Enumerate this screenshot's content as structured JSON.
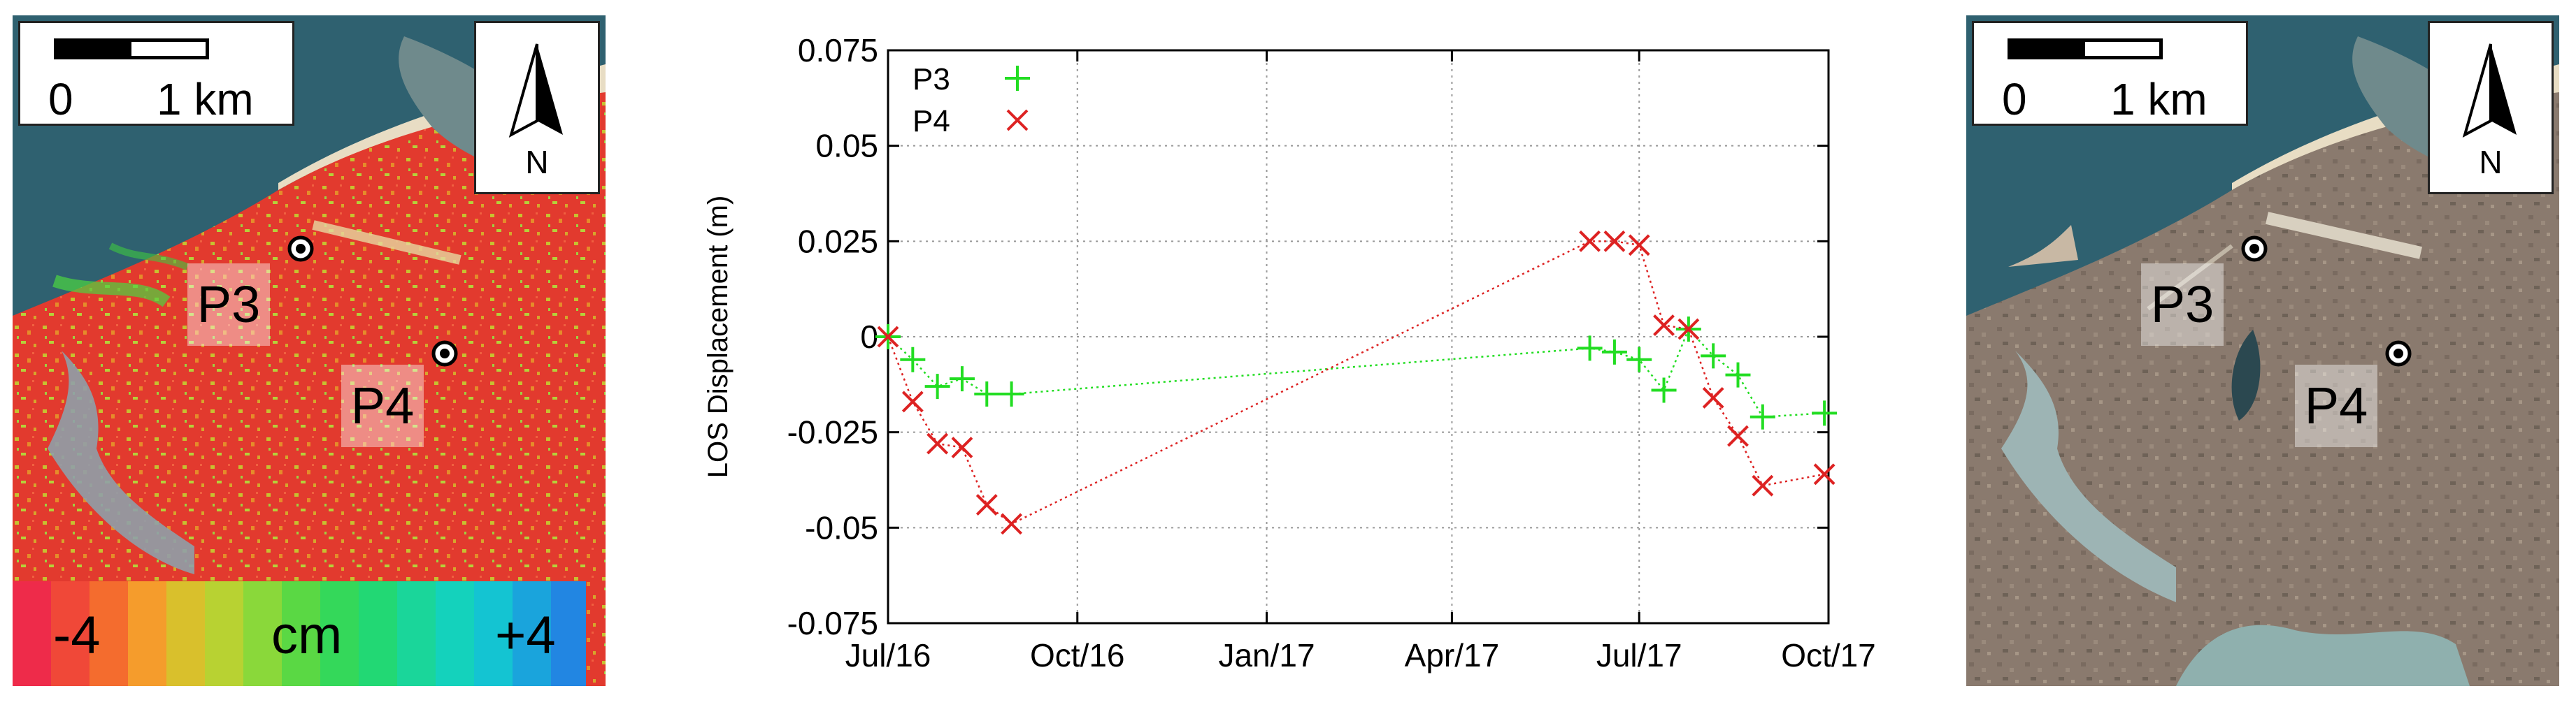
{
  "left_map": {
    "scale_zero": "0",
    "scale_unit": "1 km",
    "north": "N",
    "points": [
      "P3",
      "P4"
    ],
    "colorbar": {
      "min": "-4",
      "unit": "cm",
      "max": "+4"
    }
  },
  "right_map": {
    "scale_zero": "0",
    "scale_unit": "1 km",
    "north": "N",
    "points": [
      "P3",
      "P4"
    ]
  },
  "chart_data": {
    "type": "scatter",
    "ylabel": "LOS Displacement (m)",
    "xlabel": "",
    "ylim": [
      -0.075,
      0.075
    ],
    "xlim": [
      "2016-07-01",
      "2017-10-01"
    ],
    "yticks": [
      "0.075",
      "0.05",
      "0.025",
      "0",
      "-0.025",
      "-0.05",
      "-0.075"
    ],
    "xticks": [
      "Jul/16",
      "Oct/16",
      "Jan/17",
      "Apr/17",
      "Jul/17",
      "Oct/17"
    ],
    "grid": true,
    "legend": "top-left",
    "series": [
      {
        "name": "P3",
        "color": "#22dd22",
        "marker": "plus",
        "x": [
          "2016-07-01",
          "2016-07-13",
          "2016-07-25",
          "2016-08-06",
          "2016-08-18",
          "2016-08-30",
          "2017-06-07",
          "2017-06-19",
          "2017-07-01",
          "2017-07-13",
          "2017-07-25",
          "2017-08-06",
          "2017-08-18",
          "2017-08-30",
          "2017-09-29"
        ],
        "y": [
          0,
          -0.006,
          -0.013,
          -0.011,
          -0.015,
          -0.015,
          -0.003,
          -0.004,
          -0.006,
          -0.014,
          0.002,
          -0.005,
          -0.01,
          -0.021,
          -0.02
        ]
      },
      {
        "name": "P4",
        "color": "#dd2222",
        "marker": "cross",
        "x": [
          "2016-07-01",
          "2016-07-13",
          "2016-07-25",
          "2016-08-06",
          "2016-08-18",
          "2016-08-30",
          "2017-06-07",
          "2017-06-19",
          "2017-07-01",
          "2017-07-13",
          "2017-07-25",
          "2017-08-06",
          "2017-08-18",
          "2017-08-30",
          "2017-09-29"
        ],
        "y": [
          0,
          -0.017,
          -0.028,
          -0.029,
          -0.044,
          -0.049,
          0.025,
          0.025,
          0.024,
          0.003,
          0.002,
          -0.016,
          -0.026,
          -0.039,
          -0.036
        ]
      }
    ]
  }
}
